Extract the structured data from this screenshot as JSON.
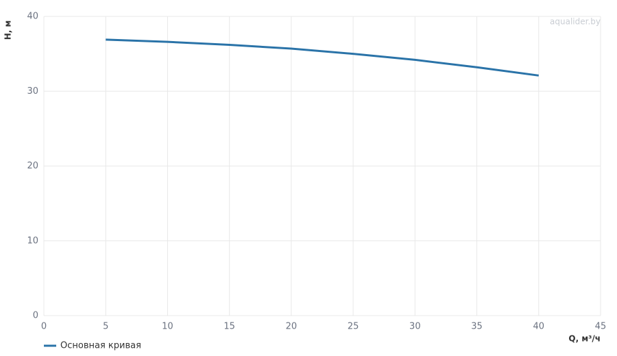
{
  "chart_data": {
    "type": "line",
    "watermark": "aqualider.by",
    "xlabel": "Q, м³/ч",
    "ylabel": "H, м",
    "x": [
      5,
      10,
      15,
      20,
      25,
      30,
      35,
      40
    ],
    "series": [
      {
        "name": "Основная кривая",
        "color": "#2a73a8",
        "values": [
          36.9,
          36.6,
          36.2,
          35.7,
          35.0,
          34.2,
          33.2,
          32.1
        ]
      }
    ],
    "xlim": [
      0,
      45
    ],
    "xticks": [
      0,
      5,
      10,
      15,
      20,
      25,
      30,
      35,
      40,
      45
    ],
    "ylim": [
      0,
      40
    ],
    "yticks": [
      0,
      10,
      20,
      30,
      40
    ],
    "grid": true
  }
}
